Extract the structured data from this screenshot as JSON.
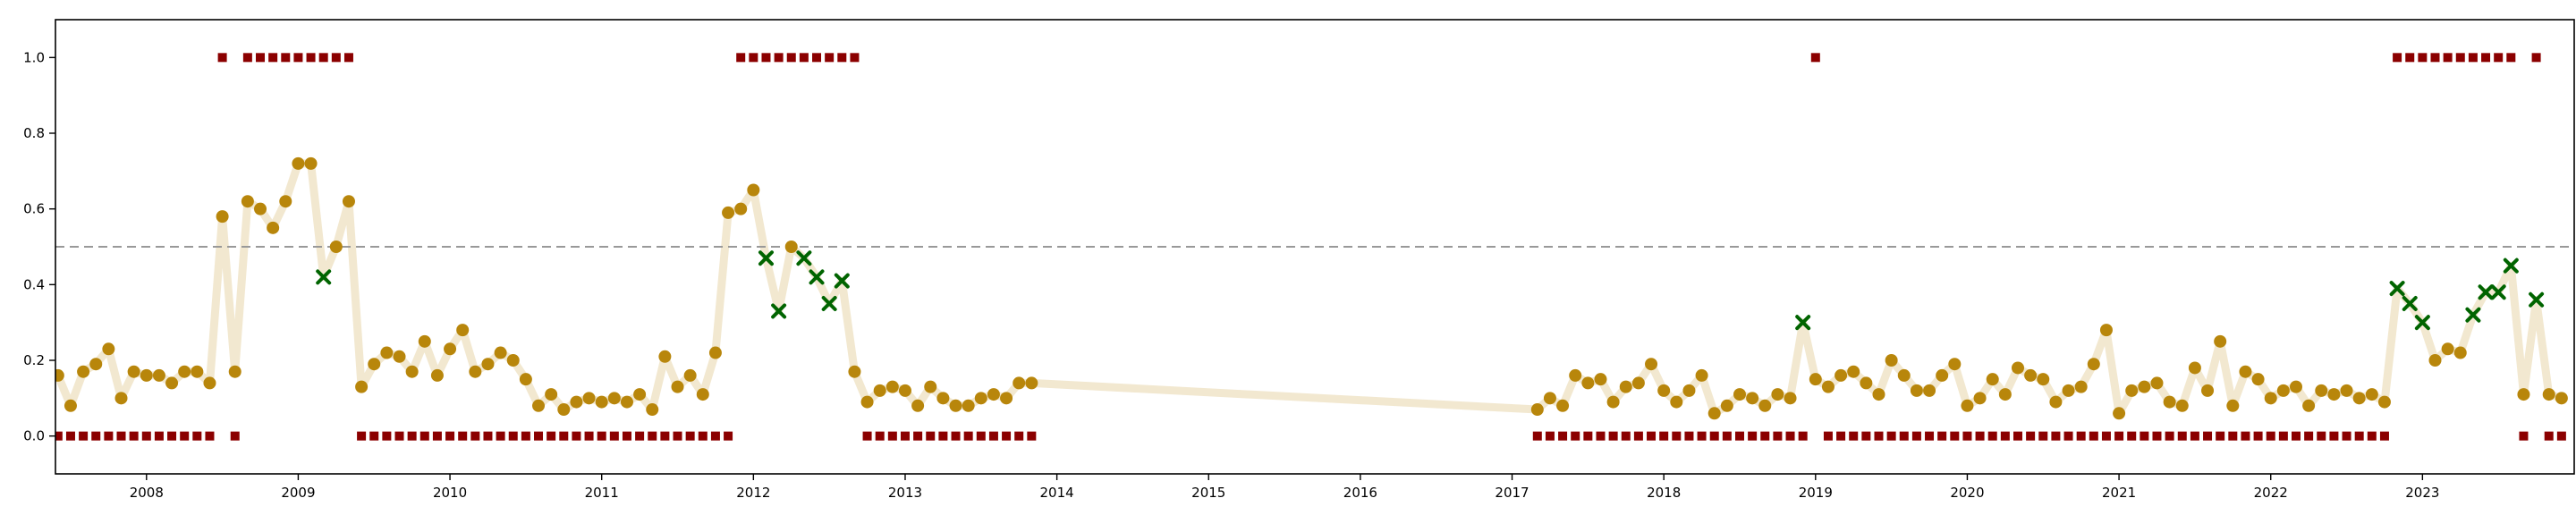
{
  "chart_data": {
    "type": "scatter",
    "title": "",
    "xlabel": "",
    "ylabel": "",
    "xlim": [
      2007.4,
      2024.0
    ],
    "ylim": [
      -0.1,
      1.1
    ],
    "grid": false,
    "x_ticks": [
      2008,
      2009,
      2010,
      2011,
      2012,
      2013,
      2014,
      2015,
      2016,
      2017,
      2018,
      2019,
      2020,
      2021,
      2022,
      2023
    ],
    "y_ticks": [
      0.0,
      0.2,
      0.4,
      0.6,
      0.8,
      1.0
    ],
    "x_tick_labels": [
      "2008",
      "2009",
      "2010",
      "2011",
      "2012",
      "2013",
      "2014",
      "2015",
      "2016",
      "2017",
      "2018",
      "2019",
      "2020",
      "2021",
      "2022",
      "2023"
    ],
    "y_tick_labels": [
      "0.0",
      "0.2",
      "0.4",
      "0.6",
      "0.8",
      "1.0"
    ],
    "threshold": 0.5,
    "colors": {
      "line": "#f0e4c8",
      "point": "#b8860b",
      "flagged": "#006400",
      "label_marker": "#8b0000",
      "threshold": "#999999",
      "frame": "#000000"
    },
    "month_values": [
      {
        "start": [
          2007,
          6
        ],
        "values": [
          0.16,
          0.08,
          0.17,
          0.19,
          0.23,
          0.1,
          0.17,
          0.16,
          0.16,
          0.14,
          0.17,
          0.17,
          0.14,
          0.58,
          0.17,
          0.62,
          0.6,
          0.55,
          0.62,
          0.72,
          0.72,
          0.42,
          0.5,
          0.62,
          0.13,
          0.19,
          0.22,
          0.21,
          0.17,
          0.25,
          0.16,
          0.23,
          0.28,
          0.17,
          0.19,
          0.22,
          0.2,
          0.15,
          0.08,
          0.11,
          0.07,
          0.09,
          0.1,
          0.09,
          0.1,
          0.09,
          0.11,
          0.07,
          0.21,
          0.13,
          0.16,
          0.11,
          0.22,
          0.59,
          0.6,
          0.65,
          0.47,
          0.33,
          0.5,
          0.47,
          0.42,
          0.35,
          0.41,
          0.17,
          0.09,
          0.12,
          0.13,
          0.12,
          0.08,
          0.13,
          0.1,
          0.08,
          0.08,
          0.1,
          0.11,
          0.1,
          0.14,
          0.14
        ]
      },
      {
        "start": [
          2017,
          3
        ],
        "values": [
          0.07,
          0.1,
          0.08,
          0.16,
          0.14,
          0.15,
          0.09,
          0.13,
          0.14,
          0.19,
          0.12,
          0.09,
          0.12,
          0.16,
          0.06,
          0.08,
          0.11,
          0.1,
          0.08,
          0.11,
          0.1,
          0.3,
          0.15,
          0.13,
          0.16,
          0.17,
          0.14,
          0.11,
          0.2,
          0.16,
          0.12,
          0.12,
          0.16,
          0.19,
          0.08,
          0.1,
          0.15,
          0.11,
          0.18,
          0.16,
          0.15,
          0.09,
          0.12,
          0.13,
          0.19,
          0.28,
          0.06,
          0.12,
          0.13,
          0.14,
          0.09,
          0.08,
          0.18,
          0.12,
          0.25,
          0.08,
          0.17,
          0.15,
          0.1,
          0.12,
          0.13,
          0.08,
          0.12,
          0.11,
          0.12,
          0.1,
          0.11,
          0.09,
          0.39,
          0.35,
          0.3,
          0.2,
          0.23,
          0.22,
          0.32,
          0.38,
          0.38,
          0.45,
          0.11,
          0.36,
          0.11,
          0.1
        ]
      }
    ],
    "label_runs": [
      {
        "start": [
          2007,
          6
        ],
        "labels": "000000000000010111111111000000000000000000000000000000111111111100000000000000"
      },
      {
        "start": [
          2017,
          3
        ],
        "labels": "0000000000000000000000100000000000000000000000000000000000000000000011111111110100"
      }
    ]
  }
}
